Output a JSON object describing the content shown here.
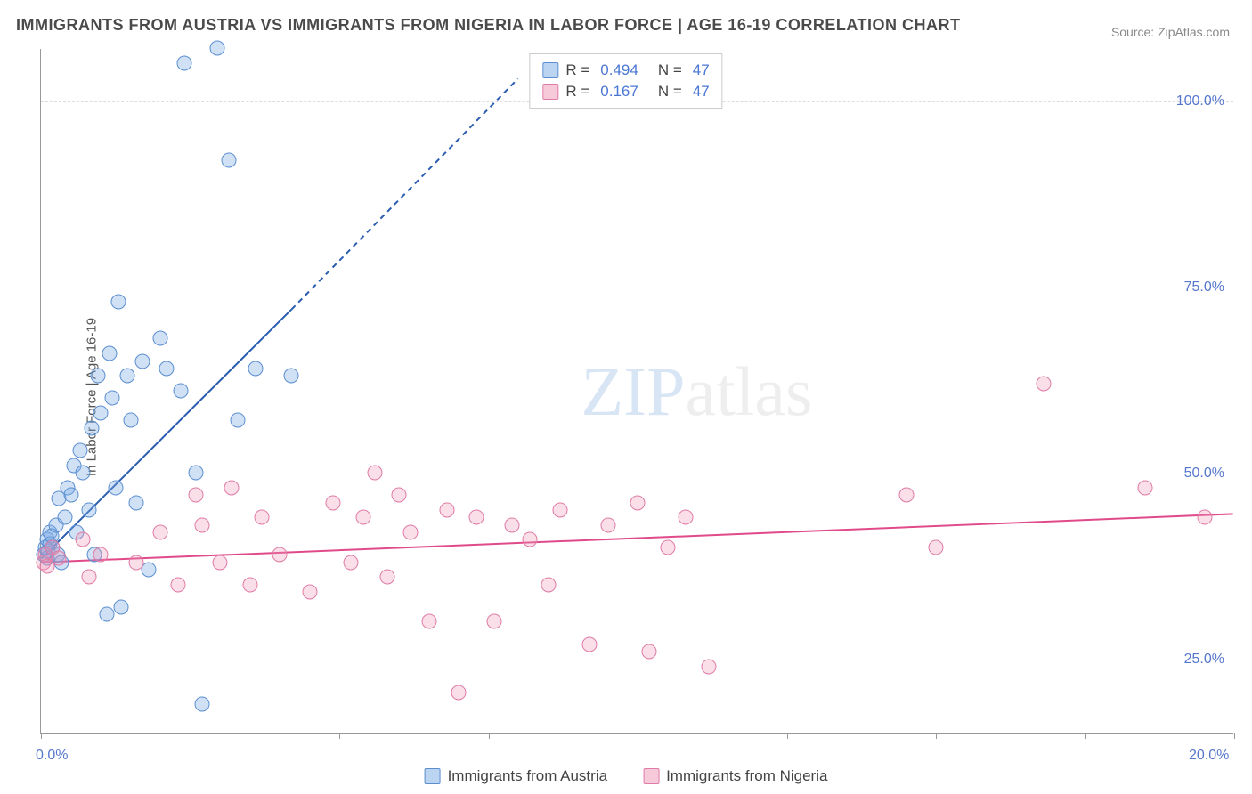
{
  "title": "IMMIGRANTS FROM AUSTRIA VS IMMIGRANTS FROM NIGERIA IN LABOR FORCE | AGE 16-19 CORRELATION CHART",
  "source": "Source: ZipAtlas.com",
  "y_axis_label": "In Labor Force | Age 16-19",
  "watermark_a": "ZIP",
  "watermark_b": "atlas",
  "chart": {
    "type": "scatter",
    "xlim": [
      0,
      20
    ],
    "ylim": [
      15,
      107
    ],
    "x_ticks": [
      0.0,
      2.5,
      5.0,
      7.5,
      10.0,
      12.5,
      15.0,
      17.5,
      20.0
    ],
    "x_tick_labels": {
      "0": "0.0%",
      "20": "20.0%"
    },
    "y_ticks": [
      25.0,
      50.0,
      75.0,
      100.0
    ],
    "y_tick_labels": {
      "25": "25.0%",
      "50": "50.0%",
      "75": "75.0%",
      "100": "100.0%"
    },
    "grid_color": "#dcdcdc",
    "background_color": "#ffffff",
    "axis_color": "#999999",
    "tick_label_color": "#5577cc",
    "marker_radius": 8.5,
    "series": [
      {
        "name": "Immigrants from Austria",
        "color_fill": "rgba(120,170,230,0.35)",
        "color_stroke": "#5b8fd0",
        "regression": {
          "x1": 0.0,
          "y1": 38.5,
          "x2": 4.2,
          "y2": 72.0,
          "dash_from_x": 4.2,
          "dash_to_x": 8.0,
          "dash_to_y": 103.0,
          "color": "#2a5db0",
          "width": 2
        },
        "points": [
          [
            0.05,
            39
          ],
          [
            0.08,
            40
          ],
          [
            0.1,
            41
          ],
          [
            0.1,
            38.5
          ],
          [
            0.12,
            39.5
          ],
          [
            0.15,
            40.5
          ],
          [
            0.15,
            42
          ],
          [
            0.18,
            41.5
          ],
          [
            0.2,
            40
          ],
          [
            0.25,
            43
          ],
          [
            0.28,
            39
          ],
          [
            0.3,
            46.5
          ],
          [
            0.35,
            38
          ],
          [
            0.4,
            44
          ],
          [
            0.45,
            48
          ],
          [
            0.5,
            47
          ],
          [
            0.55,
            51
          ],
          [
            0.6,
            42
          ],
          [
            0.65,
            53
          ],
          [
            0.7,
            50
          ],
          [
            0.8,
            45
          ],
          [
            0.85,
            56
          ],
          [
            0.9,
            39
          ],
          [
            0.95,
            63
          ],
          [
            1.0,
            58
          ],
          [
            1.1,
            31
          ],
          [
            1.15,
            66
          ],
          [
            1.2,
            60
          ],
          [
            1.25,
            48
          ],
          [
            1.3,
            73
          ],
          [
            1.35,
            32
          ],
          [
            1.45,
            63
          ],
          [
            1.5,
            57
          ],
          [
            1.6,
            46
          ],
          [
            1.7,
            65
          ],
          [
            1.8,
            37
          ],
          [
            2.0,
            68
          ],
          [
            2.1,
            64
          ],
          [
            2.35,
            61
          ],
          [
            2.4,
            105
          ],
          [
            2.6,
            50
          ],
          [
            2.7,
            19
          ],
          [
            2.95,
            107
          ],
          [
            3.15,
            92
          ],
          [
            3.3,
            57
          ],
          [
            3.6,
            64
          ],
          [
            4.2,
            63
          ]
        ]
      },
      {
        "name": "Immigrants from Nigeria",
        "color_fill": "rgba(240,150,180,0.30)",
        "color_stroke": "#e07ba5",
        "regression": {
          "x1": 0.0,
          "y1": 38.0,
          "x2": 20.0,
          "y2": 44.5,
          "color": "#e04a8a",
          "width": 2
        },
        "points": [
          [
            0.05,
            38
          ],
          [
            0.08,
            39
          ],
          [
            0.1,
            37.5
          ],
          [
            0.2,
            40
          ],
          [
            0.3,
            38.5
          ],
          [
            0.7,
            41
          ],
          [
            0.8,
            36
          ],
          [
            1.0,
            39
          ],
          [
            1.6,
            38
          ],
          [
            2.0,
            42
          ],
          [
            2.3,
            35
          ],
          [
            2.6,
            47
          ],
          [
            2.7,
            43
          ],
          [
            3.0,
            38
          ],
          [
            3.2,
            48
          ],
          [
            3.5,
            35
          ],
          [
            3.7,
            44
          ],
          [
            4.0,
            39
          ],
          [
            4.5,
            34
          ],
          [
            4.9,
            46
          ],
          [
            5.2,
            38
          ],
          [
            5.4,
            44
          ],
          [
            5.6,
            50
          ],
          [
            5.8,
            36
          ],
          [
            6.0,
            47
          ],
          [
            6.2,
            42
          ],
          [
            6.5,
            30
          ],
          [
            6.8,
            45
          ],
          [
            7.0,
            20.5
          ],
          [
            7.3,
            44
          ],
          [
            7.6,
            30
          ],
          [
            7.9,
            43
          ],
          [
            8.2,
            41
          ],
          [
            8.5,
            35
          ],
          [
            8.7,
            45
          ],
          [
            9.2,
            27
          ],
          [
            9.5,
            43
          ],
          [
            10.0,
            46
          ],
          [
            10.2,
            26
          ],
          [
            10.5,
            40
          ],
          [
            10.8,
            44
          ],
          [
            11.2,
            24
          ],
          [
            14.5,
            47
          ],
          [
            15.0,
            40
          ],
          [
            16.8,
            62
          ],
          [
            18.5,
            48
          ],
          [
            19.5,
            44
          ]
        ]
      }
    ]
  },
  "stats_legend": [
    {
      "swatch": "blue",
      "r_label": "R =",
      "r": "0.494",
      "n_label": "N =",
      "n": "47"
    },
    {
      "swatch": "pink",
      "r_label": "R =",
      "r": "0.167",
      "n_label": "N =",
      "n": "47"
    }
  ],
  "bottom_legend": [
    {
      "swatch": "blue",
      "label": "Immigrants from Austria"
    },
    {
      "swatch": "pink",
      "label": "Immigrants from Nigeria"
    }
  ]
}
